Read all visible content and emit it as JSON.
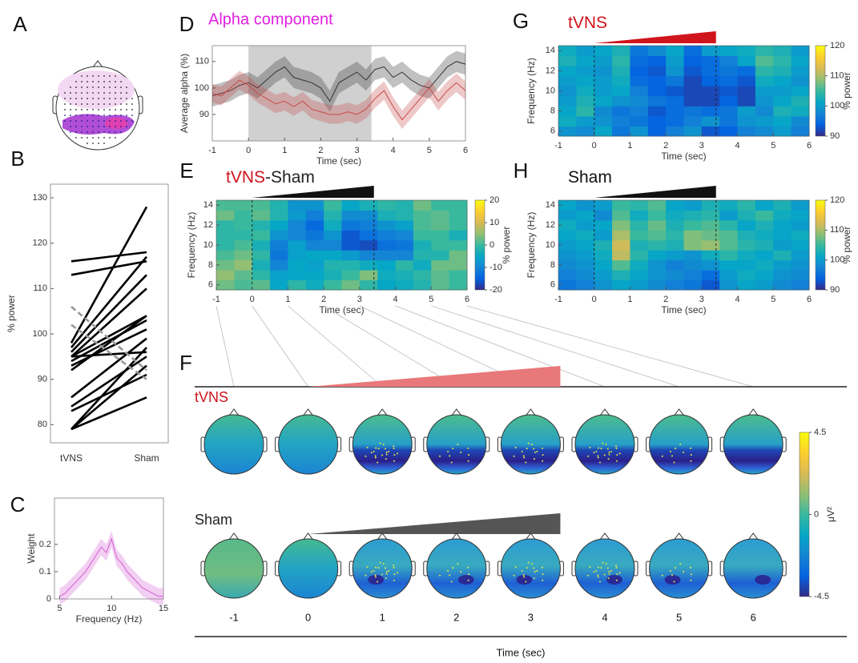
{
  "chart_data": [
    {
      "type": "topomap",
      "panel": "A"
    },
    {
      "type": "line",
      "panel": "B",
      "categories": [
        "tVNS",
        "Sham"
      ],
      "ylabel": "% power",
      "ylim": [
        76,
        133
      ],
      "yticks": [
        80,
        90,
        100,
        110,
        120,
        130
      ],
      "series": [
        {
          "color": "#000000",
          "values": [
            116,
            118
          ]
        },
        {
          "color": "#000000",
          "values": [
            113,
            116
          ]
        },
        {
          "color": "#000000",
          "values": [
            98,
            128
          ]
        },
        {
          "color": "#000000",
          "values": [
            97,
            117
          ]
        },
        {
          "color": "#000000",
          "values": [
            96,
            113
          ]
        },
        {
          "color": "#000000",
          "values": [
            95,
            110
          ]
        },
        {
          "color": "#000000",
          "values": [
            95,
            104
          ]
        },
        {
          "color": "#000000",
          "values": [
            94,
            103
          ]
        },
        {
          "color": "#000000",
          "values": [
            95,
            96
          ]
        },
        {
          "color": "#000000",
          "values": [
            93,
            101
          ]
        },
        {
          "color": "#000000",
          "values": [
            92,
            104
          ]
        },
        {
          "color": "#000000",
          "values": [
            86,
            99
          ]
        },
        {
          "color": "#000000",
          "values": [
            84,
            95
          ]
        },
        {
          "color": "#000000",
          "values": [
            83,
            91
          ]
        },
        {
          "color": "#000000",
          "values": [
            79,
            97
          ]
        },
        {
          "color": "#000000",
          "values": [
            79,
            93
          ]
        },
        {
          "color": "#000000",
          "values": [
            79,
            86
          ]
        },
        {
          "color": "#999999",
          "style": "dashed",
          "values": [
            106,
            92
          ]
        },
        {
          "color": "#999999",
          "style": "dashed",
          "values": [
            102,
            90
          ]
        }
      ]
    },
    {
      "type": "line",
      "panel": "C",
      "xlabel": "Frequency (Hz)",
      "ylabel": "Weight",
      "xlim": [
        4.5,
        15
      ],
      "ylim": [
        0,
        0.37
      ],
      "xticks": [
        5,
        10,
        15
      ],
      "yticks": [
        0,
        0.1,
        0.2
      ],
      "x": [
        5,
        5.5,
        6,
        6.5,
        7,
        7.5,
        8,
        8.5,
        9,
        9.5,
        10,
        10.5,
        11,
        11.5,
        12,
        12.5,
        13,
        13.5,
        14,
        14.5,
        15
      ],
      "series": [
        {
          "color": "#d35fd3",
          "values": [
            0.01,
            0.02,
            0.04,
            0.06,
            0.08,
            0.1,
            0.13,
            0.16,
            0.19,
            0.17,
            0.22,
            0.15,
            0.13,
            0.1,
            0.08,
            0.06,
            0.04,
            0.03,
            0.02,
            0.01,
            0.01
          ],
          "error": 0.03
        }
      ]
    },
    {
      "type": "line",
      "panel": "D",
      "title": "Alpha component",
      "title_color": "#e020e0",
      "xlabel": "Time (sec)",
      "ylabel": "Average alpha (%)",
      "xlim": [
        -1,
        6
      ],
      "ylim": [
        80,
        116
      ],
      "xticks": [
        -1,
        0,
        1,
        2,
        3,
        4,
        5,
        6
      ],
      "yticks": [
        90,
        100,
        110
      ],
      "shade": [
        0,
        3.4
      ],
      "x": [
        -1,
        -0.75,
        -0.5,
        -0.25,
        0,
        0.25,
        0.5,
        0.75,
        1,
        1.25,
        1.5,
        1.75,
        2,
        2.25,
        2.5,
        2.75,
        3,
        3.25,
        3.5,
        3.75,
        4,
        4.25,
        4.5,
        4.75,
        5,
        5.25,
        5.5,
        5.75,
        6
      ],
      "series": [
        {
          "color": "#333333",
          "values": [
            97,
            98,
            99,
            101,
            102,
            100,
            103,
            106,
            108,
            104,
            103,
            102,
            100,
            95,
            102,
            104,
            106,
            103,
            107,
            108,
            104,
            106,
            103,
            101,
            100,
            104,
            108,
            110,
            109
          ],
          "error": 4
        },
        {
          "color": "#c84a4a",
          "values": [
            98,
            97,
            100,
            103,
            101,
            98,
            96,
            94,
            95,
            93,
            95,
            92,
            91,
            90,
            90,
            91,
            90,
            92,
            96,
            99,
            93,
            88,
            92,
            96,
            100,
            95,
            99,
            102,
            99
          ],
          "error": 3.5
        }
      ]
    },
    {
      "type": "heatmap",
      "panel": "E",
      "title_parts": [
        {
          "text": "tVNS",
          "color": "#d0141c"
        },
        {
          "text": "-Sham",
          "color": "#222222"
        }
      ],
      "ramp": [
        0,
        3.4
      ],
      "ramp_color": "#111111",
      "xlabel": "Time (sec)",
      "ylabel": "Frequency (Hz)",
      "xlim": [
        -1,
        6
      ],
      "ylim": [
        5.5,
        14.5
      ],
      "xticks": [
        -1,
        0,
        1,
        2,
        3,
        4,
        5,
        6
      ],
      "yticks": [
        6,
        8,
        10,
        12,
        14
      ],
      "x": [
        -0.75,
        -0.25,
        0.25,
        0.75,
        1.25,
        1.75,
        2.25,
        2.75,
        3.25,
        3.75,
        4.25,
        4.75,
        5.25,
        5.75
      ],
      "y": [
        6,
        7,
        8,
        9,
        10,
        11,
        12,
        13,
        14
      ],
      "z": [
        [
          3,
          1,
          2,
          -5,
          -1,
          -4,
          0,
          3,
          -1,
          -5,
          -4,
          -2,
          2,
          0
        ],
        [
          5,
          2,
          -1,
          -6,
          -5,
          -5,
          -3,
          0,
          4,
          -4,
          -3,
          -1,
          2,
          0
        ],
        [
          3,
          5,
          -3,
          -10,
          -5,
          -6,
          -2,
          -2,
          -4,
          -5,
          -1,
          -4,
          3,
          3
        ],
        [
          1,
          3,
          -1,
          -12,
          -6,
          -5,
          -5,
          -7,
          -10,
          -10,
          -10,
          -2,
          -2,
          3
        ],
        [
          -1,
          1,
          -3,
          -11,
          -6,
          -10,
          -10,
          -16,
          -17,
          -13,
          -12,
          -3,
          0,
          0
        ],
        [
          -1,
          -1,
          0,
          -8,
          -10,
          -12,
          -8,
          -16,
          -13,
          -11,
          -10,
          0,
          0,
          -3
        ],
        [
          -1,
          0,
          -2,
          -5,
          -10,
          -14,
          -4,
          -12,
          -11,
          -8,
          -6,
          1,
          2,
          0
        ],
        [
          3,
          0,
          2,
          -2,
          -7,
          -11,
          -2,
          -9,
          -9,
          -3,
          -2,
          1,
          2,
          0
        ],
        [
          1,
          1,
          1,
          -2,
          -8,
          -8,
          0,
          -5,
          -3,
          -1,
          -2,
          3,
          0,
          0
        ]
      ],
      "zlim": [
        -20,
        20
      ],
      "zticks": [
        -20,
        -10,
        0,
        10,
        20
      ],
      "zlabel": "% power"
    },
    {
      "type": "topomap",
      "panel": "F",
      "rows": [
        {
          "label": "tVNS",
          "color": "#d0141c",
          "ramp_color": "#e8787a"
        },
        {
          "label": "Sham",
          "color": "#222222",
          "ramp_color": "#555555"
        }
      ],
      "times": [
        -1,
        0,
        1,
        2,
        3,
        4,
        5,
        6
      ],
      "ramp": [
        0,
        3.4
      ],
      "xlabel": "Time (sec)",
      "zlim": [
        -4.5,
        4.5
      ],
      "zticks": [
        4.5,
        0,
        -4.5
      ],
      "zlabel": "μV²"
    },
    {
      "type": "heatmap",
      "panel": "G",
      "title_parts": [
        {
          "text": "tVNS",
          "color": "#d0141c"
        }
      ],
      "ramp": [
        0,
        3.4
      ],
      "ramp_color": "#d0141c",
      "xlabel": "Time (sec)",
      "ylabel": "Frequency (Hz)",
      "xlim": [
        -1,
        6
      ],
      "ylim": [
        5.5,
        14.5
      ],
      "xticks": [
        -1,
        0,
        1,
        2,
        3,
        4,
        5,
        6
      ],
      "yticks": [
        6,
        8,
        10,
        12,
        14
      ],
      "x": [
        -0.75,
        -0.25,
        0.25,
        0.75,
        1.25,
        1.75,
        2.25,
        2.75,
        3.25,
        3.75,
        4.25,
        4.75,
        5.25,
        5.75
      ],
      "y": [
        6,
        7,
        8,
        9,
        10,
        11,
        12,
        13,
        14
      ],
      "z": [
        [
          99,
          98,
          101,
          96,
          99,
          94,
          97,
          99,
          93,
          94,
          97,
          98,
          100,
          97
        ],
        [
          102,
          100,
          99,
          97,
          96,
          94,
          95,
          97,
          99,
          96,
          99,
          100,
          101,
          98
        ],
        [
          101,
          104,
          98,
          96,
          97,
          93,
          95,
          96,
          95,
          96,
          100,
          98,
          103,
          102
        ],
        [
          100,
          103,
          101,
          99,
          98,
          96,
          95,
          92,
          92,
          94,
          92,
          99,
          101,
          103
        ],
        [
          99,
          102,
          100,
          101,
          97,
          94,
          93,
          92,
          92,
          93,
          92,
          100,
          100,
          101
        ],
        [
          100,
          101,
          100,
          102,
          95,
          94,
          96,
          92,
          94,
          95,
          93,
          102,
          101,
          99
        ],
        [
          101,
          100,
          99,
          103,
          94,
          93,
          99,
          93,
          95,
          96,
          95,
          104,
          103,
          100
        ],
        [
          103,
          101,
          100,
          104,
          95,
          94,
          100,
          94,
          95,
          97,
          101,
          106,
          104,
          101
        ],
        [
          102,
          100,
          101,
          103,
          96,
          98,
          101,
          95,
          100,
          101,
          102,
          104,
          103,
          100
        ]
      ],
      "zlim": [
        90,
        120
      ],
      "zticks": [
        90,
        100,
        110,
        120
      ],
      "zlabel": "% power"
    },
    {
      "type": "heatmap",
      "panel": "H",
      "title_parts": [
        {
          "text": "Sham",
          "color": "#111111"
        }
      ],
      "ramp": [
        0,
        3.4
      ],
      "ramp_color": "#111111",
      "xlabel": "Time (sec)",
      "ylabel": "Frequency (Hz)",
      "xlim": [
        -1,
        6
      ],
      "ylim": [
        5.5,
        14.5
      ],
      "xticks": [
        -1,
        0,
        1,
        2,
        3,
        4,
        5,
        6
      ],
      "yticks": [
        6,
        8,
        10,
        12,
        14
      ],
      "x": [
        -0.75,
        -0.25,
        0.25,
        0.75,
        1.25,
        1.75,
        2.25,
        2.75,
        3.25,
        3.75,
        4.25,
        4.75,
        5.25,
        5.75
      ],
      "y": [
        6,
        7,
        8,
        9,
        10,
        11,
        12,
        13,
        14
      ],
      "z": [
        [
          96,
          97,
          99,
          101,
          100,
          98,
          97,
          96,
          93,
          99,
          101,
          100,
          98,
          97
        ],
        [
          97,
          98,
          100,
          103,
          101,
          99,
          98,
          97,
          95,
          100,
          102,
          101,
          99,
          98
        ],
        [
          98,
          99,
          101,
          106,
          102,
          99,
          97,
          98,
          99,
          101,
          101,
          102,
          100,
          99
        ],
        [
          99,
          100,
          102,
          111,
          104,
          101,
          100,
          99,
          102,
          104,
          102,
          101,
          103,
          100
        ],
        [
          100,
          101,
          103,
          112,
          103,
          104,
          103,
          108,
          109,
          106,
          104,
          103,
          100,
          101
        ],
        [
          101,
          102,
          100,
          110,
          105,
          106,
          104,
          108,
          107,
          106,
          103,
          102,
          101,
          102
        ],
        [
          102,
          100,
          101,
          108,
          104,
          107,
          103,
          105,
          106,
          104,
          101,
          103,
          101,
          100
        ],
        [
          100,
          101,
          98,
          106,
          102,
          105,
          102,
          103,
          104,
          100,
          103,
          105,
          102,
          101
        ],
        [
          101,
          99,
          100,
          105,
          104,
          106,
          101,
          100,
          103,
          102,
          104,
          101,
          103,
          100
        ]
      ],
      "zlim": [
        90,
        120
      ],
      "zticks": [
        90,
        100,
        110,
        120
      ],
      "zlabel": "% power"
    }
  ]
}
